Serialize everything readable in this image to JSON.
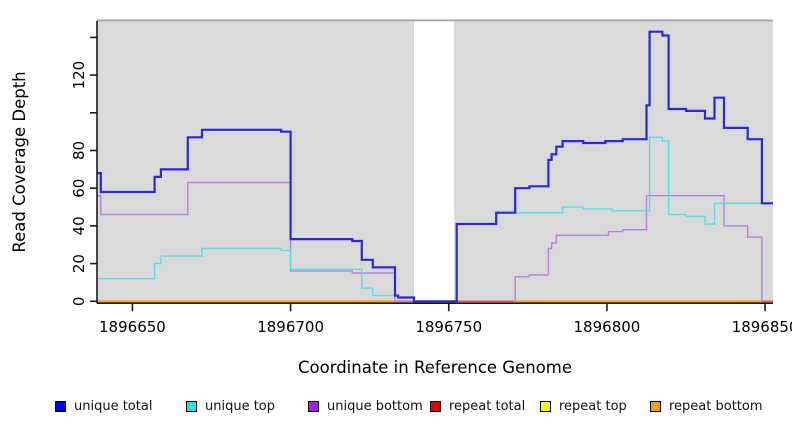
{
  "chart_data": {
    "type": "line",
    "subtype": "step-coverage",
    "title": "",
    "xlabel": "Coordinate in Reference Genome",
    "ylabel": "Read Coverage Depth",
    "xlim": [
      1896638.8,
      1896852.5
    ],
    "ylim": [
      0,
      143
    ],
    "grid": false,
    "legend_position": "bottom",
    "panel": {
      "bg_color": "#d9d9d9",
      "top_edge_color": "#a3a3a3",
      "gap_x": [
        1896739,
        1896751.7
      ],
      "axis_color": "#1a1a1a"
    },
    "x_ticks": [
      {
        "value": 1896650,
        "label": "1896650"
      },
      {
        "value": 1896700,
        "label": "1896700"
      },
      {
        "value": 1896750,
        "label": "1896750"
      },
      {
        "value": 1896800,
        "label": "1896800"
      },
      {
        "value": 1896850,
        "label": "1896850"
      }
    ],
    "y_ticks": [
      {
        "value": 0,
        "label": "0"
      },
      {
        "value": 20,
        "label": "20"
      },
      {
        "value": 40,
        "label": "40"
      },
      {
        "value": 60,
        "label": "60"
      },
      {
        "value": 80,
        "label": "80"
      },
      {
        "value": 100,
        "label": ""
      },
      {
        "value": 120,
        "label": "120"
      },
      {
        "value": 140,
        "label": ""
      }
    ],
    "series": [
      {
        "name": "repeat top",
        "color": "#f0f000",
        "width": 1.6,
        "segments": [
          {
            "points": [
              [
                1896638.8,
                0
              ]
            ],
            "end": 1896852.5
          }
        ]
      },
      {
        "name": "repeat total",
        "color": "#e05561",
        "width": 1.6,
        "segments": [
          {
            "points": [
              [
                1896638.8,
                0
              ]
            ],
            "end": 1896852.5
          }
        ]
      },
      {
        "name": "repeat bottom",
        "color": "#ff9e1b",
        "width": 1.8,
        "segments": [
          {
            "points": [
              [
                1896638.8,
                0
              ]
            ],
            "end": 1896739
          },
          {
            "points": [
              [
                1896770.5,
                0
              ]
            ],
            "end": 1896849.3
          }
        ]
      },
      {
        "name": "unique bottom",
        "color": "#b583d9",
        "width": 1.4,
        "segments": [
          {
            "points": [
              [
                1896638.8,
                56
              ],
              [
                1896640,
                46
              ],
              [
                1896667.5,
                63
              ],
              [
                1896700,
                16
              ],
              [
                1896719.5,
                15
              ],
              [
                1896733,
                0
              ]
            ],
            "end": 1896751.7
          },
          {
            "points": [
              [
                1896770.5,
                0
              ],
              [
                1896771,
                13
              ],
              [
                1896775.5,
                14
              ],
              [
                1896781.5,
                28
              ],
              [
                1896782.5,
                31
              ],
              [
                1896784,
                35
              ],
              [
                1896800.5,
                37
              ],
              [
                1896805,
                38
              ],
              [
                1896812.5,
                56
              ],
              [
                1896837,
                40
              ],
              [
                1896844.5,
                34
              ],
              [
                1896849,
                0
              ]
            ],
            "end": 1896849.3
          }
        ]
      },
      {
        "name": "unique top",
        "color": "#55dde8",
        "width": 1.4,
        "segments": [
          {
            "points": [
              [
                1896638.8,
                12
              ],
              [
                1896657,
                20
              ],
              [
                1896659,
                24
              ],
              [
                1896672,
                28
              ],
              [
                1896697,
                27
              ],
              [
                1896700,
                17
              ],
              [
                1896722.5,
                7
              ],
              [
                1896726,
                3
              ],
              [
                1896734,
                2
              ],
              [
                1896739,
                0
              ],
              [
                1896752.5,
                41
              ],
              [
                1896765,
                47
              ],
              [
                1896786,
                50
              ],
              [
                1896792.5,
                49
              ],
              [
                1896801.5,
                48
              ],
              [
                1896813.5,
                87
              ],
              [
                1896817.5,
                85
              ],
              [
                1896819.5,
                46
              ],
              [
                1896825,
                45
              ],
              [
                1896831,
                41
              ],
              [
                1896834,
                52
              ]
            ],
            "end": 1896852.5
          }
        ]
      },
      {
        "name": "unique total",
        "color": "#2a2ad4",
        "width": 2.2,
        "segments": [
          {
            "points": [
              [
                1896638.8,
                68
              ],
              [
                1896640,
                58
              ],
              [
                1896657,
                66
              ],
              [
                1896659,
                70
              ],
              [
                1896667.5,
                87
              ],
              [
                1896672,
                91
              ],
              [
                1896697,
                90
              ],
              [
                1896700,
                33
              ],
              [
                1896719.5,
                32
              ],
              [
                1896722.5,
                22
              ],
              [
                1896726,
                18
              ],
              [
                1896733,
                3
              ],
              [
                1896734,
                2
              ],
              [
                1896739,
                0
              ],
              [
                1896752.5,
                41
              ],
              [
                1896765,
                47
              ],
              [
                1896771,
                60
              ],
              [
                1896775.5,
                61
              ],
              [
                1896781.5,
                75
              ],
              [
                1896782.5,
                78
              ],
              [
                1896784,
                82
              ],
              [
                1896786,
                85
              ],
              [
                1896792.5,
                84
              ],
              [
                1896799.5,
                85
              ],
              [
                1896805,
                86
              ],
              [
                1896812.5,
                104
              ],
              [
                1896813.5,
                143
              ],
              [
                1896817.5,
                141
              ],
              [
                1896819.5,
                102
              ],
              [
                1896825,
                101
              ],
              [
                1896831,
                97
              ],
              [
                1896834,
                108
              ],
              [
                1896837,
                92
              ],
              [
                1896844.5,
                86
              ],
              [
                1896849,
                52
              ]
            ],
            "end": 1896852.5
          }
        ]
      }
    ],
    "legend": [
      {
        "label": "unique total",
        "color": "#0000e8"
      },
      {
        "label": "unique top",
        "color": "#22e2ec"
      },
      {
        "label": "unique bottom",
        "color": "#a020f0"
      },
      {
        "label": "repeat total",
        "color": "#e60000"
      },
      {
        "label": "repeat top",
        "color": "#ffff00"
      },
      {
        "label": "repeat bottom",
        "color": "#ff9e00"
      }
    ]
  }
}
